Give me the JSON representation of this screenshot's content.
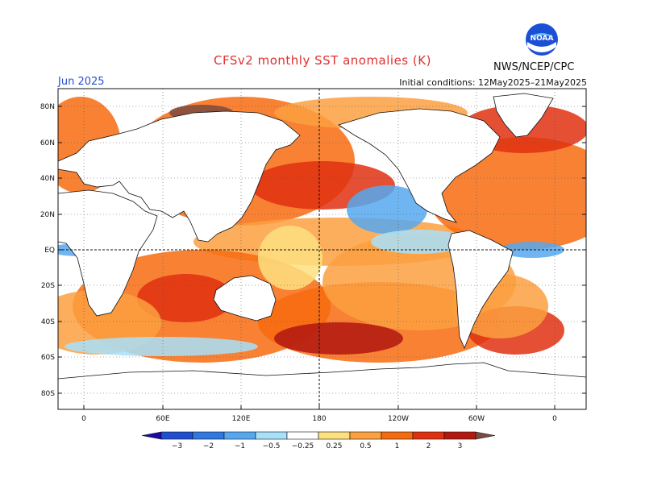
{
  "header": {
    "title": "CFSv2 monthly SST anomalies (K)",
    "valid_month": "Jun 2025",
    "initial_conditions": "Initial conditions: 12May2025–21May2025",
    "agency": "NWS/NCEP/CPC",
    "logo_text": "NOAA"
  },
  "colors": {
    "title": "#e03030",
    "valid": "#2a4fd0",
    "ocean_bg": "#ffffff",
    "land": "#ffffff",
    "coast": "#111111"
  },
  "map": {
    "lat_labels": [
      "80N",
      "60N",
      "40N",
      "20N",
      "EQ",
      "20S",
      "40S",
      "60S",
      "80S"
    ],
    "lon_labels": [
      "0",
      "60E",
      "120E",
      "180",
      "120W",
      "60W",
      "0"
    ]
  },
  "colorbar": {
    "labels": [
      "−3",
      "−2",
      "−1",
      "−0.5",
      "−0.25",
      "0.25",
      "0.5",
      "1",
      "2",
      "3"
    ],
    "colors": [
      "#1c0aa8",
      "#1f4fcf",
      "#2f78e0",
      "#55a8f0",
      "#a8e0fa",
      "#ffffff",
      "#fde080",
      "#fca040",
      "#f76b10",
      "#e03010",
      "#b21810",
      "#7c4a40"
    ]
  }
}
